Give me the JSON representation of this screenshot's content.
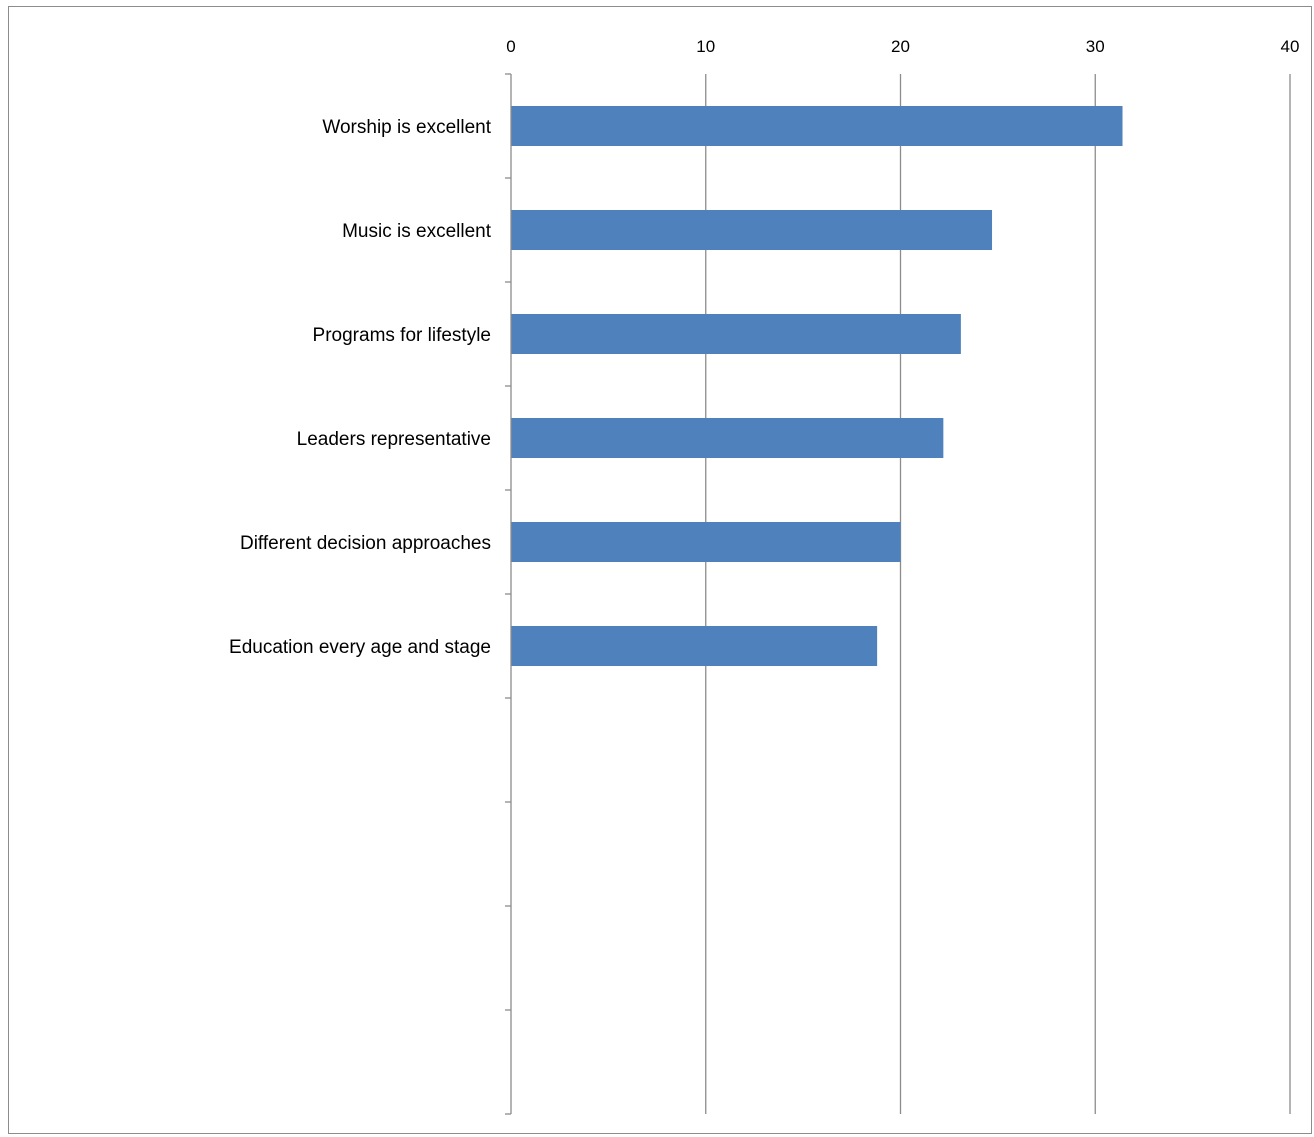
{
  "chart_data": {
    "type": "bar",
    "orientation": "horizontal",
    "title": "",
    "xlabel": "",
    "ylabel": "",
    "xlim": [
      0,
      40
    ],
    "ticks": [
      "0",
      "10",
      "20",
      "30",
      "40"
    ],
    "tick_values": [
      0,
      10,
      20,
      30,
      40
    ],
    "axis_position": "top",
    "grid": true,
    "legend": "none",
    "slots": 10,
    "categories": [
      "Worship is excellent",
      "Music is excellent",
      "Programs for lifestyle",
      "Leaders representative",
      "Different decision approaches",
      "Education every age and stage"
    ],
    "values": [
      31.4,
      24.7,
      23.1,
      22.2,
      20.0,
      18.8
    ],
    "bar_color": "#4f81bd",
    "grid_color": "#8c8c8c"
  }
}
